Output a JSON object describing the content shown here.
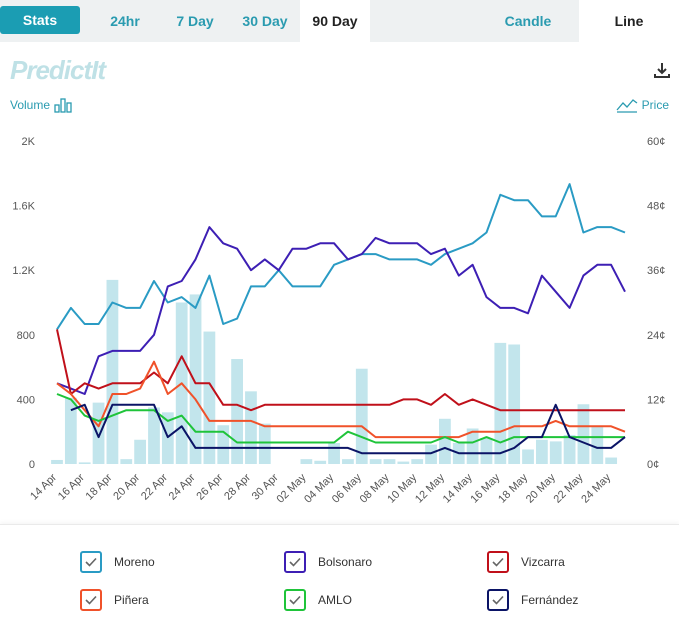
{
  "tabs": {
    "stats": "Stats",
    "h24": "24hr",
    "d7": "7 Day",
    "d30": "30 Day",
    "d90": "90 Day",
    "candle": "Candle",
    "line": "Line"
  },
  "logo_text": "PredictIt",
  "volume_label": "Volume",
  "price_label": "Price",
  "chart_data": {
    "type": "line",
    "x": [
      "14 Apr",
      "15 Apr",
      "16 Apr",
      "17 Apr",
      "18 Apr",
      "19 Apr",
      "20 Apr",
      "21 Apr",
      "22 Apr",
      "23 Apr",
      "24 Apr",
      "25 Apr",
      "26 Apr",
      "27 Apr",
      "28 Apr",
      "29 Apr",
      "30 Apr",
      "01 May",
      "02 May",
      "03 May",
      "04 May",
      "05 May",
      "06 May",
      "07 May",
      "08 May",
      "09 May",
      "10 May",
      "11 May",
      "12 May",
      "13 May",
      "14 May",
      "15 May",
      "16 May",
      "17 May",
      "18 May",
      "19 May",
      "20 May",
      "21 May",
      "22 May",
      "23 May",
      "24 May",
      "25 May"
    ],
    "x_tick_labels": [
      "14 Apr",
      "16 Apr",
      "18 Apr",
      "20 Apr",
      "22 Apr",
      "24 Apr",
      "26 Apr",
      "28 Apr",
      "30 Apr",
      "02 May",
      "04 May",
      "06 May",
      "08 May",
      "10 May",
      "12 May",
      "14 May",
      "16 May",
      "18 May",
      "20 May",
      "22 May",
      "24 May"
    ],
    "y_left_ticks": [
      "0",
      "400",
      "800",
      "1.2K",
      "1.6K",
      "2K"
    ],
    "y_left_range": [
      0,
      2000
    ],
    "y_right_ticks": [
      "0¢",
      "12¢",
      "24¢",
      "36¢",
      "48¢",
      "60¢"
    ],
    "y_right_range": [
      0,
      60
    ],
    "volume": [
      25,
      410,
      10,
      380,
      1140,
      30,
      150,
      350,
      320,
      1000,
      1050,
      820,
      240,
      650,
      450,
      250,
      0,
      0,
      30,
      20,
      130,
      30,
      590,
      30,
      30,
      15,
      30,
      120,
      280,
      130,
      220,
      160,
      750,
      740,
      90,
      150,
      140,
      180,
      370,
      230,
      40,
      0
    ],
    "series": [
      {
        "name": "Moreno",
        "color": "#2a9bc4",
        "values": [
          25,
          29,
          26,
          26,
          30,
          29,
          29,
          34,
          30,
          31,
          29,
          35,
          26,
          27,
          33,
          33,
          36,
          33,
          33,
          33,
          37,
          38,
          39,
          39,
          38,
          38,
          38,
          37,
          39,
          40,
          41,
          43,
          50,
          49,
          49,
          46,
          46,
          52,
          43,
          44,
          44,
          43
        ]
      },
      {
        "name": "Bolsonaro",
        "color": "#3d1fb4",
        "values": [
          15,
          14,
          13,
          20,
          21,
          21,
          21,
          24,
          33,
          34,
          38,
          44,
          41,
          40,
          36,
          38,
          36,
          40,
          40,
          41,
          41,
          38,
          39,
          42,
          41,
          41,
          41,
          39,
          40,
          35,
          37,
          31,
          29,
          29,
          28,
          35,
          32,
          29,
          35,
          37,
          37,
          32
        ]
      },
      {
        "name": "Vizcarra",
        "color": "#c0101a",
        "values": [
          25,
          13,
          15,
          14,
          15,
          15,
          15,
          17,
          15,
          20,
          15,
          15,
          11,
          11,
          10,
          11,
          11,
          11,
          11,
          11,
          11,
          11,
          11,
          11,
          11,
          12,
          12,
          11,
          13,
          11,
          12,
          11,
          10,
          10,
          10,
          10,
          10,
          10,
          10,
          10,
          10,
          10
        ]
      },
      {
        "name": "Piñera",
        "color": "#f0522a",
        "values": [
          15,
          13,
          10,
          7,
          13,
          13,
          14,
          19,
          13,
          15,
          12,
          8,
          8,
          8,
          8,
          7,
          7,
          7,
          7,
          7,
          7,
          7,
          7,
          5,
          5,
          5,
          5,
          5,
          5,
          5,
          6,
          6,
          6,
          7,
          7,
          7,
          8,
          7,
          7,
          7,
          7,
          6
        ]
      },
      {
        "name": "AMLO",
        "color": "#1fc43a",
        "values": [
          13,
          12,
          9,
          8,
          9,
          10,
          10,
          10,
          8,
          9,
          6,
          6,
          6,
          4,
          4,
          4,
          4,
          4,
          4,
          4,
          4,
          6,
          5,
          4,
          4,
          4,
          4,
          4,
          5,
          4,
          4,
          5,
          4,
          5,
          5,
          5,
          5,
          5,
          5,
          5,
          5,
          5
        ]
      },
      {
        "name": "Fernández",
        "color": "#0b1466",
        "values": [
          null,
          10,
          11,
          5,
          11,
          11,
          11,
          11,
          5,
          7,
          3,
          3,
          3,
          3,
          3,
          3,
          3,
          3,
          3,
          3,
          3,
          3,
          2,
          2,
          2,
          2,
          2,
          2,
          3,
          2,
          2,
          2,
          2,
          3,
          5,
          5,
          11,
          5,
          4,
          3,
          3,
          5
        ]
      }
    ]
  },
  "legend": [
    {
      "name": "Moreno",
      "color": "#2a9bc4"
    },
    {
      "name": "Bolsonaro",
      "color": "#3d1fb4"
    },
    {
      "name": "Vizcarra",
      "color": "#c0101a"
    },
    {
      "name": "Piñera",
      "color": "#f0522a"
    },
    {
      "name": "AMLO",
      "color": "#1fc43a"
    },
    {
      "name": "Fernández",
      "color": "#0b1466"
    }
  ]
}
